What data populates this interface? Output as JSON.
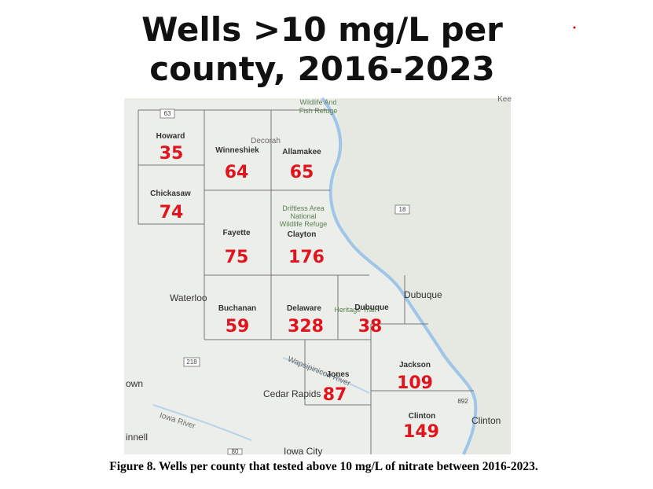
{
  "header": {
    "title_line1": "Wells >10 mg/L per",
    "title_line2": "county, 2016-2023"
  },
  "counties": [
    {
      "name": "Howard",
      "count": 35
    },
    {
      "name": "Chickasaw",
      "count": 74
    },
    {
      "name": "Winneshiek",
      "count": 64
    },
    {
      "name": "Allamakee",
      "count": 65
    },
    {
      "name": "Fayette",
      "count": 75
    },
    {
      "name": "Clayton",
      "count": 176
    },
    {
      "name": "Buchanan",
      "count": 59
    },
    {
      "name": "Delaware",
      "count": 328
    },
    {
      "name": "Dubuque",
      "count": 38
    },
    {
      "name": "Jones",
      "count": 87
    },
    {
      "name": "Jackson",
      "count": 109
    },
    {
      "name": "Clinton",
      "count": 149
    }
  ],
  "map_labels": {
    "refuge_north": "Wildlife And",
    "refuge_north2": "Fish Refuge",
    "decorah": "Decorah",
    "driftless1": "Driftless Area",
    "driftless2": "National",
    "driftless3": "Wildlife Refuge",
    "waterloo": "Waterloo",
    "dubuque_city": "Dubuque",
    "heritage": "Heritage Trail",
    "cedar_rapids": "Cedar Rapids",
    "clinton_city": "Clinton",
    "iowa_river": "Iowa River",
    "wapsi": "Wapsipinicon River",
    "iowa_city": "Iowa City",
    "own": "own",
    "innell": "innell",
    "kee": "Kee",
    "route63": "63",
    "route18": "18",
    "route218": "218",
    "route80": "80",
    "route892": "892"
  },
  "caption": "Figure 8. Wells per county that tested above 10 mg/L of nitrate between 2016-2023."
}
